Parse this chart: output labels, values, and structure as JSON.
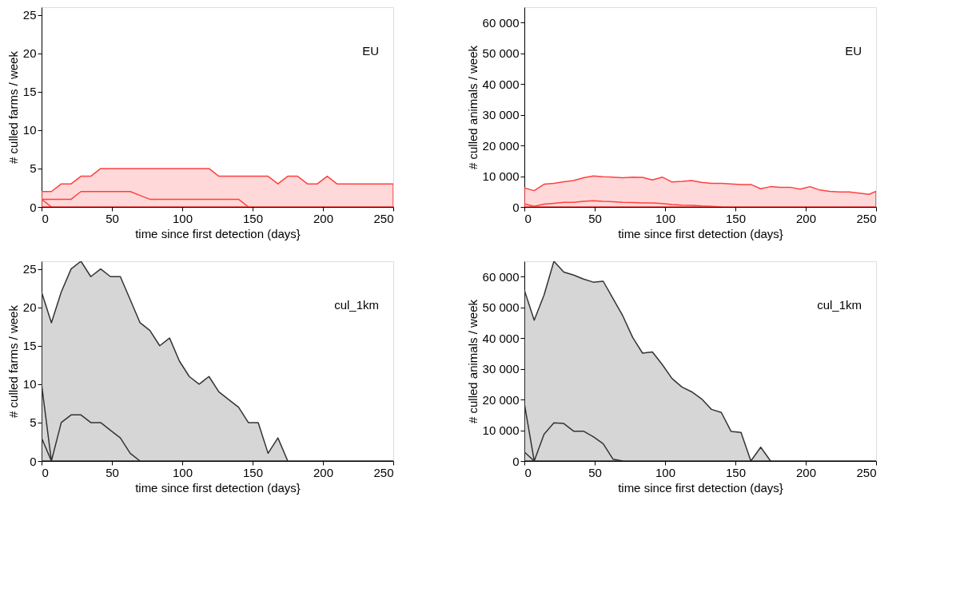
{
  "chart_data": [
    {
      "type": "area",
      "xlabel": "time since first detection (days}",
      "ylabel": "# culled farms / week",
      "annotations": [
        "EU"
      ],
      "xlim": [
        0,
        250
      ],
      "xticks": [
        0,
        50,
        100,
        150,
        200,
        250
      ],
      "ylim": [
        0,
        26
      ],
      "yticks": [
        0,
        5,
        10,
        15,
        20,
        25
      ],
      "grid": false,
      "series": [
        {
          "type": "area",
          "color": "#ff4040",
          "x": [
            0,
            7,
            14,
            21,
            28,
            35,
            42,
            49,
            56,
            63,
            70,
            77,
            84,
            91,
            98,
            105,
            112,
            119,
            126,
            133,
            140,
            147,
            154,
            161,
            168,
            175,
            182,
            189,
            196,
            203,
            210,
            217,
            224,
            231,
            238,
            245,
            250
          ],
          "values": [
            2,
            2,
            3,
            3,
            4,
            4,
            5,
            5,
            5,
            5,
            5,
            5,
            5,
            5,
            5,
            5,
            5,
            5,
            4,
            4,
            4,
            4,
            4,
            4,
            3,
            4,
            4,
            3,
            3,
            4,
            3,
            3,
            3,
            3,
            3,
            3,
            3
          ]
        },
        {
          "type": "line",
          "color": "#ff4040",
          "x": [
            0,
            7,
            14,
            21,
            28,
            35,
            42,
            49,
            56,
            63,
            70,
            77,
            84,
            91,
            98,
            105,
            112,
            119,
            126,
            133,
            140,
            147
          ],
          "values": [
            1,
            1,
            1,
            1,
            2,
            2,
            2,
            2,
            2,
            2,
            1.5,
            1,
            1,
            1,
            1,
            1,
            1,
            1,
            1,
            1,
            1,
            0
          ]
        },
        {
          "type": "line",
          "color": "#ff4040",
          "x": [
            0,
            7
          ],
          "values": [
            1,
            0
          ]
        }
      ]
    },
    {
      "type": "area",
      "xlabel": "time since first detection (days}",
      "ylabel": "# culled animals / week",
      "annotations": [
        "EU"
      ],
      "xlim": [
        0,
        250
      ],
      "xticks": [
        0,
        50,
        100,
        150,
        200,
        250
      ],
      "ylim": [
        0,
        65000
      ],
      "yticks": [
        0,
        {
          "value": 10000,
          "label": "10 000"
        },
        {
          "value": 20000,
          "label": "20 000"
        },
        {
          "value": 30000,
          "label": "30 000"
        },
        {
          "value": 40000,
          "label": "40 000"
        },
        {
          "value": 50000,
          "label": "50 000"
        },
        {
          "value": 60000,
          "label": "60 000"
        }
      ],
      "grid": false,
      "series": [
        {
          "type": "area",
          "color": "#ff4040",
          "x": [
            0,
            7,
            14,
            21,
            28,
            35,
            42,
            49,
            56,
            63,
            70,
            77,
            84,
            91,
            98,
            105,
            112,
            119,
            126,
            133,
            140,
            147,
            154,
            161,
            168,
            175,
            182,
            189,
            196,
            203,
            210,
            217,
            224,
            231,
            238,
            245,
            250
          ],
          "values": [
            6200,
            5300,
            7400,
            7700,
            8200,
            8600,
            9500,
            10100,
            9800,
            9700,
            9500,
            9700,
            9600,
            8800,
            9700,
            8100,
            8300,
            8600,
            8000,
            7700,
            7700,
            7500,
            7300,
            7300,
            5900,
            6600,
            6400,
            6400,
            5800,
            6600,
            5500,
            5100,
            4900,
            4900,
            4500,
            4100,
            5100
          ]
        },
        {
          "type": "line",
          "color": "#ff4040",
          "x": [
            0,
            7,
            14,
            21,
            28,
            35,
            42,
            49,
            56,
            63,
            70,
            77,
            84,
            91,
            98,
            105,
            112,
            119,
            126,
            133,
            140
          ],
          "values": [
            1000,
            200,
            900,
            1200,
            1500,
            1500,
            1800,
            2000,
            1800,
            1700,
            1500,
            1400,
            1300,
            1300,
            1100,
            800,
            600,
            500,
            300,
            200,
            0
          ]
        }
      ]
    },
    {
      "type": "area",
      "xlabel": "time since first detection (days}",
      "ylabel": "# culled farms / week",
      "annotations": [
        "cul_1km"
      ],
      "xlim": [
        0,
        250
      ],
      "xticks": [
        0,
        50,
        100,
        150,
        200,
        250
      ],
      "ylim": [
        0,
        26
      ],
      "yticks": [
        0,
        5,
        10,
        15,
        20,
        25
      ],
      "grid": false,
      "series": [
        {
          "type": "area",
          "color": "#333333",
          "x": [
            0,
            7,
            14,
            21,
            28,
            35,
            42,
            49,
            56,
            63,
            70,
            77,
            84,
            91,
            98,
            105,
            112,
            119,
            126,
            133,
            140,
            147,
            154,
            161,
            168,
            175,
            250
          ],
          "values": [
            22,
            18,
            22,
            25,
            26,
            24,
            25,
            24,
            24,
            21,
            18,
            17,
            15,
            16,
            13,
            11,
            10,
            11,
            9,
            8,
            7,
            5,
            5,
            1,
            3,
            0,
            0
          ]
        },
        {
          "type": "line",
          "color": "#333333",
          "x": [
            0,
            7,
            14,
            21,
            28,
            35,
            42,
            49,
            56,
            63,
            70
          ],
          "values": [
            10,
            0,
            5,
            6,
            6,
            5,
            5,
            4,
            3,
            1,
            0
          ]
        },
        {
          "type": "line",
          "color": "#333333",
          "x": [
            0,
            7
          ],
          "values": [
            3,
            0
          ]
        }
      ]
    },
    {
      "type": "area",
      "xlabel": "time since first detection (days}",
      "ylabel": "# culled animals / week",
      "annotations": [
        "cul_1km"
      ],
      "xlim": [
        0,
        250
      ],
      "xticks": [
        0,
        50,
        100,
        150,
        200,
        250
      ],
      "ylim": [
        0,
        65000
      ],
      "yticks": [
        0,
        {
          "value": 10000,
          "label": "10 000"
        },
        {
          "value": 20000,
          "label": "20 000"
        },
        {
          "value": 30000,
          "label": "30 000"
        },
        {
          "value": 40000,
          "label": "40 000"
        },
        {
          "value": 50000,
          "label": "50 000"
        },
        {
          "value": 60000,
          "label": "60 000"
        }
      ],
      "grid": false,
      "series": [
        {
          "type": "area",
          "color": "#333333",
          "x": [
            0,
            7,
            14,
            21,
            28,
            35,
            42,
            49,
            56,
            63,
            70,
            77,
            84,
            91,
            98,
            105,
            112,
            119,
            126,
            133,
            140,
            147,
            154,
            161,
            168,
            175,
            250
          ],
          "values": [
            55600,
            45800,
            54000,
            65000,
            61500,
            60500,
            59200,
            58200,
            58500,
            52900,
            47200,
            40200,
            35100,
            35500,
            31400,
            26800,
            24100,
            22500,
            20200,
            16800,
            15800,
            9600,
            9300,
            0,
            4500,
            0,
            0
          ]
        },
        {
          "type": "line",
          "color": "#333333",
          "x": [
            0,
            7,
            14,
            21,
            28,
            35,
            42,
            49,
            56,
            63,
            70
          ],
          "values": [
            18700,
            0,
            8700,
            12400,
            12200,
            9700,
            9700,
            7900,
            5600,
            600,
            0
          ]
        },
        {
          "type": "line",
          "color": "#333333",
          "x": [
            0,
            7
          ],
          "values": [
            2900,
            0
          ]
        }
      ]
    }
  ]
}
